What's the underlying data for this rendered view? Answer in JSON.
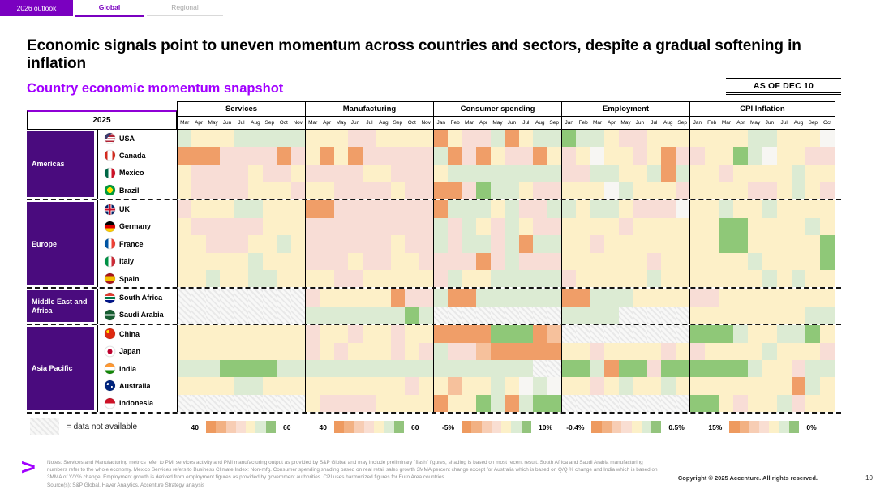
{
  "tabs": [
    {
      "label": "2026 outlook",
      "state": "selected"
    },
    {
      "label": "Global",
      "state": "active"
    },
    {
      "label": "Regional",
      "state": "inactive"
    }
  ],
  "header": {
    "title": "Economic signals point to uneven momentum across countries and sectors, despite a gradual softening in inflation",
    "subtitle": "Country economic momentum snapshot",
    "as_of": "AS OF DEC 10"
  },
  "brand_colors": {
    "accent_purple": "#a100ff",
    "tab_purple": "#7a00c0",
    "region_purple": "#4a0b7e"
  },
  "chart_data": {
    "type": "heatmap",
    "title": "Country economic momentum snapshot",
    "year_label": "2025",
    "color_scale": "Cells shade from orange (weak momentum / low value) to green (strong momentum / high value); CPI Inflation scale runs 15% (orange) to 0% (green); hatched grey cell = data not available",
    "palette": {
      "g": "#8fc878",
      "l": "#dcebd3",
      "e": "#e9f1e7",
      "y": "#fdf0c8",
      "w": "#f7f6f3",
      "p": "#f8ddd6",
      "o": "#f6c19c",
      "O": "#f09e68",
      "n": "#f0efee"
    },
    "legend_gradient": [
      "#ee9a5f",
      "#f2b183",
      "#f7cdb4",
      "#f9ded2",
      "#fcf0c8",
      "#dcecd4",
      "#93c47d"
    ],
    "na_note": "= data not available",
    "groups": [
      {
        "label": "Services",
        "months": [
          "Mar",
          "Apr",
          "May",
          "Jun",
          "Jul",
          "Aug",
          "Sep",
          "Oct",
          "Nov"
        ],
        "legend_min": "40",
        "legend_max": "60"
      },
      {
        "label": "Manufacturing",
        "months": [
          "Mar",
          "Apr",
          "May",
          "Jun",
          "Jul",
          "Aug",
          "Sep",
          "Oct",
          "Nov"
        ],
        "legend_min": "40",
        "legend_max": "60"
      },
      {
        "label": "Consumer spending",
        "months": [
          "Jan",
          "Feb",
          "Mar",
          "Apr",
          "May",
          "Jun",
          "Jul",
          "Aug",
          "Sep"
        ],
        "legend_min": "-5%",
        "legend_max": "10%"
      },
      {
        "label": "Employment",
        "months": [
          "Jan",
          "Feb",
          "Mar",
          "Apr",
          "May",
          "Jun",
          "Jul",
          "Aug",
          "Sep"
        ],
        "legend_min": "-0.4%",
        "legend_max": "0.5%"
      },
      {
        "label": "CPI Inflation",
        "months": [
          "Jan",
          "Feb",
          "Mar",
          "Apr",
          "May",
          "Jun",
          "Jul",
          "Aug",
          "Sep",
          "Oct"
        ],
        "legend_min": "15%",
        "legend_max": "0%"
      }
    ],
    "regions": [
      {
        "name": "Americas",
        "countries": [
          {
            "name": "USA",
            "flag_css": "linear-gradient(135deg,#3c3b6e 0 36%,rgba(0,0,0,0) 36%),repeating-linear-gradient(180deg,#b22234 0 1.6px,#ffffff 1.6px 3.2px)",
            "cells": [
              "lyyylllll",
              "yyyppyyyy",
              "OypplOyll",
              "gllyppyyy",
              "yyyyllyyyw"
            ]
          },
          {
            "name": "Canada",
            "flag_css": "linear-gradient(90deg,#d52b1e 0 28%,#ffffff 28% 72%,#d52b1e 72%)",
            "cells": [
              "OOOppppOp",
              "yOyOppppp",
              "lOpOyppOy",
              "pywyypyOp",
              "pyyglwyypp"
            ]
          },
          {
            "name": "Mexico",
            "flag_css": "linear-gradient(90deg,#006847 0 33%,#ffffff 33% 67%,#ce1126 67%)",
            "cells": [
              "yppppyppy",
              "ppppyyppp",
              "yllllllll",
              "ppllyylOl",
              "yypyyyylyy"
            ]
          },
          {
            "name": "Brazil",
            "flag_css": "radial-gradient(circle,#ffdf00 0 38%,#009c3b 38%)",
            "cells": [
              "yppppyyyp",
              "yyppppypp",
              "OOpgllypp",
              "yyywlyyyp",
              "yyyyppylyp"
            ]
          }
        ]
      },
      {
        "name": "Europe",
        "countries": [
          {
            "name": "UK",
            "flag_css": "linear-gradient(0deg,rgba(0,0,0,0) 41%,#c8102e 41% 59%,rgba(0,0,0,0) 59%),linear-gradient(90deg,rgba(0,0,0,0) 41%,#c8102e 41% 59%,rgba(0,0,0,0) 59%),linear-gradient(0deg,rgba(0,0,0,0) 33%,#ffffff 33% 67%,rgba(0,0,0,0) 67%),linear-gradient(90deg,rgba(0,0,0,0) 33%,#ffffff 33% 67%,rgba(0,0,0,0) 67%),#012169",
            "cells": [
              "pyyyllyyy",
              "OOppppppp",
              "Olllylppl",
              "lyllypppw",
              "yylyylyyyy"
            ]
          },
          {
            "name": "Germany",
            "flag_css": "linear-gradient(180deg,#000000 0 33%,#dd0000 33% 67%,#ffce00 67%)",
            "cells": [
              "ypppppyyy",
              "ppppppppp",
              "lplyplypp",
              "yyyypyyyy",
              "yyggyyyyly"
            ]
          },
          {
            "name": "France",
            "flag_css": "linear-gradient(90deg,#0055a4 0 33%,#ffffff 33% 67%,#ef4135 67%)",
            "cells": [
              "yypppyyly",
              "ppppppypp",
              "lpllplOll",
              "yypyyyyyy",
              "yyggyyyyyg"
            ]
          },
          {
            "name": "Italy",
            "flag_css": "linear-gradient(90deg,#009246 0 33%,#ffffff 33% 67%,#ce2b37 67%)",
            "cells": [
              "yyyyylyyy",
              "pppyppyyp",
              "pppOplppp",
              "yyyyyypyy",
              "yyyylyyyyg"
            ]
          },
          {
            "name": "Spain",
            "flag_css": "linear-gradient(180deg,#aa151b 0 27%,#f1bf00 27% 73%,#aa151b 73%)",
            "cells": [
              "yylyyllyy",
              "yyppyyyyy",
              "plyylllll",
              "pyyyyylyy",
              "yyyyylylyy"
            ]
          }
        ]
      },
      {
        "name": "Middle East and Africa",
        "countries": [
          {
            "name": "South Africa",
            "flag_css": "linear-gradient(180deg,#e03c31 0 30%,#ffffff 30% 38%,#007749 38% 62%,#ffffff 62% 70%,#001489 70%)",
            "cells": [
              "nnnnnnnnn",
              "pyyyyyOpp",
              "lOOllllll",
              "OOlllyyyy",
              "ppyyyyyyyy"
            ]
          },
          {
            "name": "Saudi Arabia",
            "flag_css": "linear-gradient(180deg,rgba(0,0,0,0) 44%,#ffffff 44% 56%,rgba(0,0,0,0) 56%),#165d31",
            "cells": [
              "nnnnnnnnn",
              "lllllllgl",
              "nnnnnnnnn",
              "llllnnnnn",
              "yyyyyyyyll"
            ]
          }
        ]
      },
      {
        "name": "Asia Pacific",
        "countries": [
          {
            "name": "China",
            "flag_css": "radial-gradient(circle at 32% 32%,#ffde00 0 16%,rgba(0,0,0,0) 16%),#de2910",
            "cells": [
              "yyyyyyyyy",
              "pyypyypyy",
              "OOOOgggOo",
              "nnnnnnnnn",
              "ggglyyllgy"
            ]
          },
          {
            "name": "Japan",
            "flag_css": "radial-gradient(circle,#bc002d 0 32%,#ffffff 32%)",
            "cells": [
              "yyyyyyyyy",
              "pypyyypyp",
              "lppoOOOOO",
              "yypyyyypy",
              "pyyyylyyyp"
            ]
          },
          {
            "name": "India",
            "flag_css": "linear-gradient(180deg,#ff9933 0 33%,#ffffff 33% 67%,#138808 67%)",
            "cells": [
              "lllggggll",
              "lllllllll",
              "lllllllnn",
              "gglOggpgg",
              "gggglyypll"
            ]
          },
          {
            "name": "Australia",
            "flag_css": "radial-gradient(circle at 30% 35%,#ffffff 0 11%,rgba(0,0,0,0) 11%),radial-gradient(circle at 68% 62%,#ffffff 0 9%,rgba(0,0,0,0) 9%),#00247d",
            "cells": [
              "yyyyllyyy",
              "yyyyyyypy",
              "yoyylywlw",
              "yypylyyly",
              "yyyyyyyOly"
            ]
          },
          {
            "name": "Indonesia",
            "flag_css": "linear-gradient(180deg,#ce1126 0 50%,#ffffff 50%)",
            "cells": [
              "nnnnnnnnn",
              "yppppyyyy",
              "OyyglOlgg",
              "nnnnnnnnn",
              "ggypyylpyy"
            ]
          }
        ]
      }
    ]
  },
  "footer": {
    "logo": ">",
    "notes": [
      "Notes: Services and Manufacturing metrics refer to PMI services activity and PMI manufacturing output as provided by S&P Global and may include preliminary \"flash\" figures, shading is based on most recent result. South Africa and Saudi Arabia manufacturing",
      "numbers refer to the whole economy. Mexico Services refers to Business Climate Index: Non-mfg. Consumer spending shading based on real retail sales growth 3MMA percent change except for Australia which is based on Q/Q % change and India which is based on",
      "3MMA of Y/Y% change. Employment growth is derived from employment figures as provided by government authorities. CPI uses harmonized figures for Euro Area countries.",
      "Source(s): S&P Global, Haver Analytics, Accenture Strategy analysis"
    ],
    "copyright": "Copyright © 2025 Accenture. All rights reserved.",
    "page": "10"
  }
}
